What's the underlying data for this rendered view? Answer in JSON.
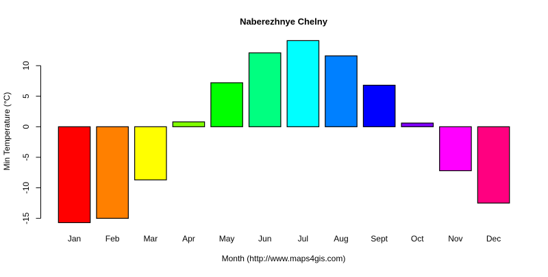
{
  "chart_data": {
    "type": "bar",
    "title": "Naberezhnye Chelny",
    "xlabel": "Month (http://www.maps4gis.com)",
    "ylabel": "Min Temperature (°C)",
    "categories": [
      "Jan",
      "Feb",
      "Mar",
      "Apr",
      "May",
      "Jun",
      "Jul",
      "Aug",
      "Sept",
      "Oct",
      "Nov",
      "Dec"
    ],
    "values": [
      -15.7,
      -15.0,
      -8.7,
      0.8,
      7.2,
      12.1,
      14.1,
      11.6,
      6.8,
      0.6,
      -7.2,
      -12.5
    ],
    "colors": [
      "#FF0000",
      "#FF8000",
      "#FFFF00",
      "#80FF00",
      "#00FF00",
      "#00FF80",
      "#00FFFF",
      "#0080FF",
      "#0000FF",
      "#8000FF",
      "#FF00FF",
      "#FF0080"
    ],
    "yticks": [
      -15,
      -10,
      -5,
      0,
      5,
      10
    ],
    "ytick_labels": [
      "-15",
      "-10",
      "-5",
      "0",
      "5",
      "10"
    ],
    "ylim": [
      -15.7,
      14.1
    ],
    "grid": false,
    "legend": "none"
  }
}
